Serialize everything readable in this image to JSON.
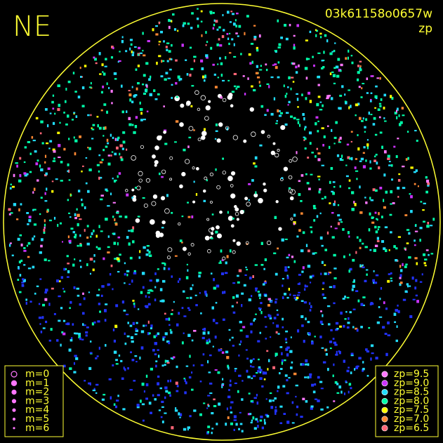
{
  "corner_label": "NE",
  "image_id": "03k61158o0657w",
  "color_by": "zp",
  "magnitude_legend": [
    {
      "label": "m=0"
    },
    {
      "label": "m=1"
    },
    {
      "label": "m=2"
    },
    {
      "label": "m=3"
    },
    {
      "label": "m=4"
    },
    {
      "label": "m=5"
    },
    {
      "label": "m=6"
    }
  ],
  "zp_legend": [
    {
      "label": "zp=9.5",
      "color": "#ff77ff"
    },
    {
      "label": "zp=9.0",
      "color": "#cc33ff"
    },
    {
      "label": "zp=8.5",
      "color": "#22ddff"
    },
    {
      "label": "zp=8.0",
      "color": "#00ffaa"
    },
    {
      "label": "zp=7.5",
      "color": "#ffff00"
    },
    {
      "label": "zp=7.0",
      "color": "#ff8833"
    },
    {
      "label": "zp=6.5",
      "color": "#ff6677"
    }
  ]
}
